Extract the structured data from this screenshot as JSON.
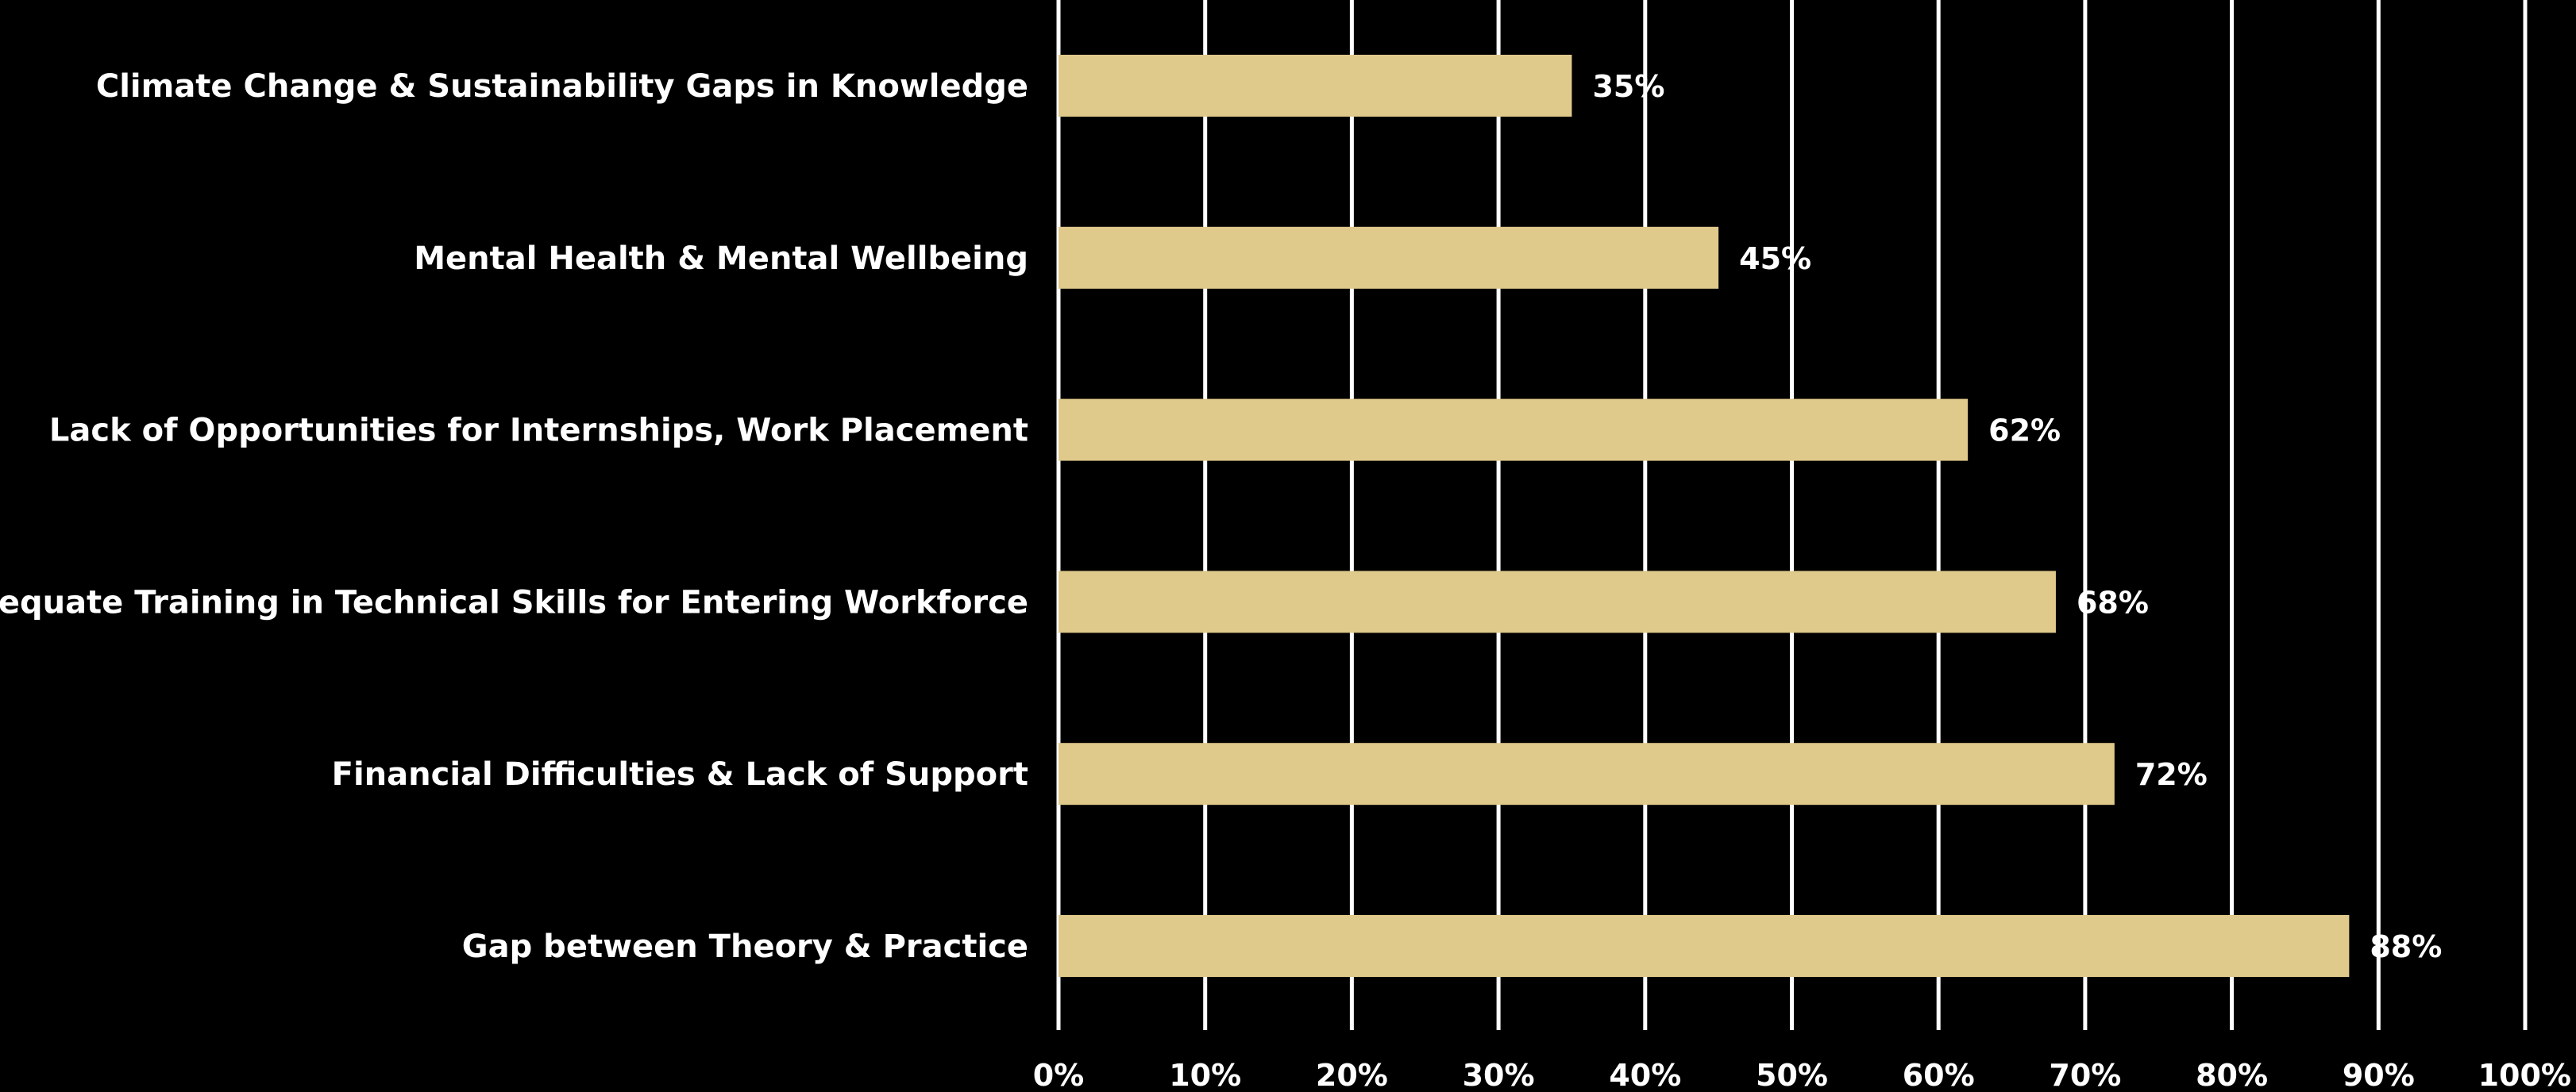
{
  "chart_data": {
    "type": "bar",
    "orientation": "horizontal",
    "categories": [
      "Climate Change & Sustainability Gaps in Knowledge",
      "Mental Health & Mental Wellbeing",
      "Lack of Opportunities for Internships, Work Placement",
      "Inadequate Training in Technical Skills for Entering Workforce",
      "Financial Difficulties & Lack of Support",
      "Gap between Theory & Practice"
    ],
    "values": [
      35,
      45,
      62,
      68,
      72,
      88
    ],
    "value_labels": [
      "35%",
      "45%",
      "62%",
      "68%",
      "72%",
      "88%"
    ],
    "xlim": [
      0,
      100
    ],
    "x_ticks": [
      0,
      10,
      20,
      30,
      40,
      50,
      60,
      70,
      80,
      90,
      100
    ],
    "x_tick_labels": [
      "0%",
      "10%",
      "20%",
      "30%",
      "40%",
      "50%",
      "60%",
      "70%",
      "80%",
      "90%",
      "100%"
    ],
    "title": "",
    "xlabel": "",
    "ylabel": "",
    "grid": "vertical",
    "colors": {
      "background": "#000000",
      "bar": "#dfc98b",
      "grid": "#ffffff",
      "text": "#ffffff"
    }
  }
}
